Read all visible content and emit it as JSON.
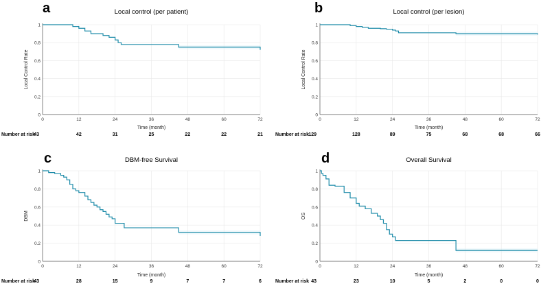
{
  "chart_data": [
    {
      "type": "line",
      "panel_letter": "a",
      "title": "Local control (per patient)",
      "xlabel": "Time (month)",
      "ylabel": "Local Control Rate",
      "xlim": [
        0,
        72
      ],
      "ylim": [
        0,
        1
      ],
      "x_ticks": [
        "0",
        "12",
        "24",
        "36",
        "48",
        "60",
        "72"
      ],
      "y_ticks": [
        "0",
        "0.2",
        "0.4",
        "0.6",
        "0.8",
        "1"
      ],
      "series": [
        {
          "name": "Local control (per patient)",
          "x": [
            0,
            10,
            12,
            14,
            16,
            20,
            22,
            24,
            25,
            26,
            45,
            72
          ],
          "y": [
            1,
            0.98,
            0.96,
            0.93,
            0.9,
            0.88,
            0.86,
            0.83,
            0.8,
            0.78,
            0.75,
            0.72
          ]
        }
      ],
      "risk_table": {
        "label": "Number at risk",
        "values": [
          "43",
          "42",
          "31",
          "25",
          "22",
          "22",
          "21"
        ]
      }
    },
    {
      "type": "line",
      "panel_letter": "b",
      "title": "Local control (per lesion)",
      "xlabel": "Time (month)",
      "ylabel": "Local Control Rate",
      "xlim": [
        0,
        72
      ],
      "ylim": [
        0,
        1
      ],
      "x_ticks": [
        "0",
        "12",
        "24",
        "36",
        "48",
        "60",
        "72"
      ],
      "y_ticks": [
        "0",
        "0.2",
        "0.4",
        "0.6",
        "0.8",
        "1"
      ],
      "series": [
        {
          "name": "Local control (per lesion)",
          "x": [
            0,
            10,
            12,
            14,
            16,
            20,
            22,
            24,
            25,
            26,
            45,
            72
          ],
          "y": [
            1,
            0.99,
            0.98,
            0.97,
            0.96,
            0.955,
            0.95,
            0.94,
            0.93,
            0.91,
            0.9,
            0.89
          ]
        }
      ],
      "risk_table": {
        "label": "Number at risk",
        "values": [
          "129",
          "128",
          "89",
          "75",
          "68",
          "68",
          "66"
        ]
      }
    },
    {
      "type": "line",
      "panel_letter": "c",
      "title": "DBM-free Survival",
      "xlabel": "Time (month)",
      "ylabel": "DBM",
      "xlim": [
        0,
        72
      ],
      "ylim": [
        0,
        1
      ],
      "x_ticks": [
        "0",
        "12",
        "24",
        "36",
        "48",
        "60",
        "72"
      ],
      "y_ticks": [
        "0",
        "0.2",
        "0.4",
        "0.6",
        "0.8",
        "1"
      ],
      "series": [
        {
          "name": "DBM-free Survival",
          "x": [
            0,
            2,
            4,
            6,
            7,
            8,
            9,
            10,
            11,
            12,
            14,
            15,
            16,
            17,
            18,
            19,
            20,
            21,
            22,
            23,
            24,
            27,
            45,
            72
          ],
          "y": [
            1,
            0.98,
            0.97,
            0.95,
            0.93,
            0.9,
            0.85,
            0.8,
            0.78,
            0.76,
            0.72,
            0.68,
            0.65,
            0.62,
            0.6,
            0.57,
            0.55,
            0.52,
            0.49,
            0.47,
            0.42,
            0.37,
            0.32,
            0.28
          ]
        }
      ],
      "risk_table": {
        "label": "Number at risk",
        "values": [
          "43",
          "28",
          "15",
          "9",
          "7",
          "7",
          "6"
        ]
      }
    },
    {
      "type": "line",
      "panel_letter": "d",
      "title": "Overall Survival",
      "xlabel": "Time (month)",
      "ylabel": "OS",
      "xlim": [
        0,
        72
      ],
      "ylim": [
        0,
        1
      ],
      "x_ticks": [
        "0",
        "12",
        "24",
        "36",
        "48",
        "60",
        "72"
      ],
      "y_ticks": [
        "0",
        "0.2",
        "0.4",
        "0.6",
        "0.8",
        "1"
      ],
      "series": [
        {
          "name": "Overall Survival",
          "x": [
            0,
            0.5,
            1,
            2,
            3,
            5,
            8,
            10,
            12,
            13,
            15,
            17,
            19,
            20,
            21,
            22,
            23,
            24,
            25,
            45,
            72
          ],
          "y": [
            1,
            0.97,
            0.95,
            0.91,
            0.84,
            0.83,
            0.76,
            0.7,
            0.64,
            0.61,
            0.58,
            0.53,
            0.5,
            0.46,
            0.42,
            0.35,
            0.3,
            0.27,
            0.23,
            0.12,
            0.12
          ]
        }
      ],
      "risk_table": {
        "label": "Number at risk",
        "values": [
          "43",
          "23",
          "10",
          "5",
          "2",
          "0",
          "0"
        ]
      }
    }
  ]
}
